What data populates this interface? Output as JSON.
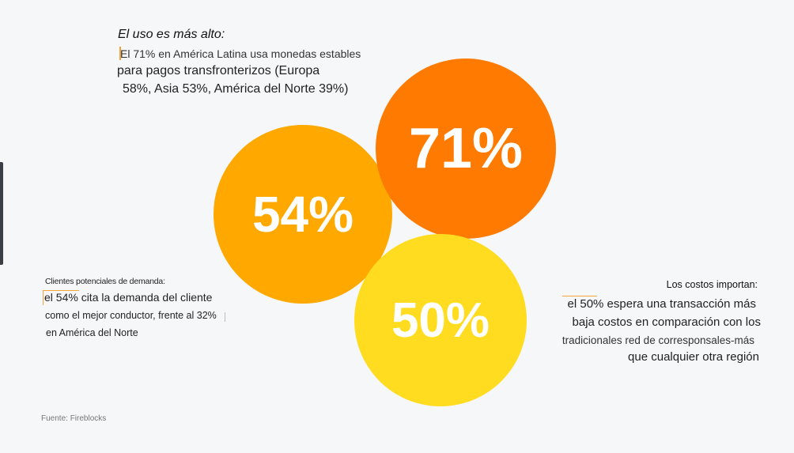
{
  "circles": {
    "c71": {
      "label": "71%",
      "color": "#ff7a00"
    },
    "c54": {
      "label": "54%",
      "color": "#ffa800"
    },
    "c50": {
      "label": "50%",
      "color": "#ffdc1f"
    }
  },
  "top_block": {
    "title": "El uso es más alto:",
    "line1": "El 71% en América Latina usa monedas estables",
    "line2": "para pagos transfronterizos (Europa",
    "line3": "58%, Asia 53%, América del Norte 39%)"
  },
  "left_block": {
    "title": "Clientes potenciales de demanda:",
    "line1": "el 54% cita la demanda del cliente",
    "line2": "como el mejor conductor, frente al 32%",
    "line3": "en América del Norte"
  },
  "right_block": {
    "title": "Los costos importan:",
    "line1": "el 50% espera una transacción más",
    "line2": "baja costos en comparación con los",
    "line3": "tradicionales red de corresponsales-más",
    "line4": "que cualquier otra región"
  },
  "source": "Fuente: Fireblocks",
  "colors": {
    "accent_mark": "#f3a33a",
    "background": "#f6f7f9"
  }
}
